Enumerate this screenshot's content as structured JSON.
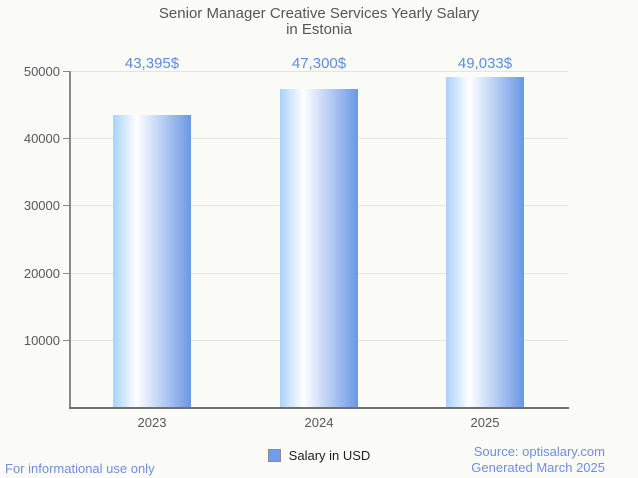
{
  "title": {
    "line1": "Senior Manager Creative Services Yearly Salary",
    "line2": "in Estonia"
  },
  "chart_data": {
    "type": "bar",
    "title": "Senior Manager Creative Services Yearly Salary in Estonia",
    "categories": [
      "2023",
      "2024",
      "2025"
    ],
    "values": [
      43395,
      47300,
      49033
    ],
    "value_labels": [
      "43,395$",
      "47,300$",
      "49,033$"
    ],
    "series": [
      {
        "name": "Salary in USD",
        "values": [
          43395,
          47300,
          49033
        ]
      }
    ],
    "xlabel": "",
    "ylabel": "",
    "ylim": [
      0,
      50000
    ],
    "yticks": [
      10000,
      20000,
      30000,
      40000,
      50000
    ],
    "grid": true,
    "legend_position": "bottom",
    "colors": {
      "bar_gradient_left": "#a9d2f9",
      "bar_gradient_mid": "#ffffff",
      "bar_gradient_right": "#6b97e7",
      "value_label": "#5b8edb",
      "axis_text": "#57585b",
      "grid_line": "#e4e4e2"
    }
  },
  "legend": {
    "label": "Salary in USD",
    "swatch_color": "#6d9eeb",
    "swatch_border": "#8b8b8b"
  },
  "footer": {
    "left_note": "For informational use only",
    "source": "Source: optisalary.com",
    "generated": "Generated March 2025",
    "link_color": "#6f8ee3"
  }
}
